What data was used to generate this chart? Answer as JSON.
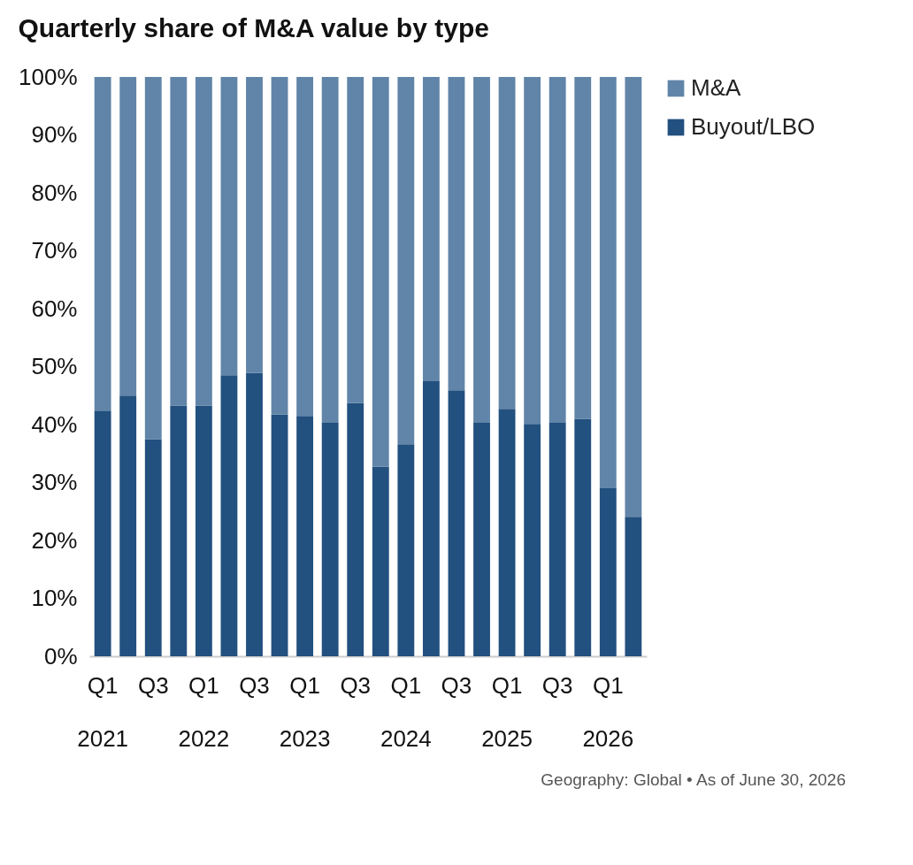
{
  "chart_data": {
    "type": "bar",
    "title": "Quarterly share of M&A value by type",
    "stacked": true,
    "categories": [
      "Q1\n2021",
      null,
      "Q3",
      null,
      "Q1\n2022",
      null,
      "Q3",
      null,
      "Q1\n2023",
      null,
      "Q3",
      null,
      "Q1\n2024",
      null,
      "Q3",
      null,
      "Q1\n2025",
      null,
      "Q3",
      null,
      "Q1\n2026",
      null
    ],
    "series": [
      {
        "name": "Buyout/LBO",
        "color": "#22507f",
        "values": [
          42.4,
          45.0,
          37.5,
          43.3,
          43.3,
          48.5,
          48.9,
          41.7,
          41.5,
          40.3,
          43.7,
          32.7,
          36.6,
          47.5,
          45.9,
          40.3,
          42.7,
          40.1,
          40.3,
          41.0,
          29.0,
          24.1
        ]
      },
      {
        "name": "M&A",
        "color": "#6185a8",
        "values": [
          57.6,
          55.0,
          62.5,
          56.7,
          56.7,
          51.5,
          51.1,
          58.3,
          58.5,
          59.7,
          56.3,
          67.3,
          63.4,
          52.5,
          54.1,
          59.7,
          57.3,
          59.9,
          59.7,
          59.0,
          71.0,
          75.9
        ]
      }
    ],
    "ylim": [
      0,
      100
    ],
    "yticks": [
      {
        "value": 0,
        "label": "0%"
      },
      {
        "value": 10,
        "label": "10%"
      },
      {
        "value": 20,
        "label": "20%"
      },
      {
        "value": 30,
        "label": "30%"
      },
      {
        "value": 40,
        "label": "40%"
      },
      {
        "value": 50,
        "label": "50%"
      },
      {
        "value": 60,
        "label": "60%"
      },
      {
        "value": 70,
        "label": "70%"
      },
      {
        "value": 80,
        "label": "80%"
      },
      {
        "value": 90,
        "label": "90%"
      },
      {
        "value": 100,
        "label": "100%"
      }
    ],
    "legend": "top right",
    "annotations": [
      "Geography: Global • As of June 30, 2026"
    ]
  }
}
